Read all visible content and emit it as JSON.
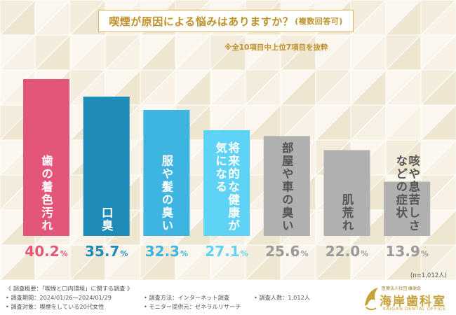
{
  "header": {
    "title": "喫煙が原因による悩みはありますか？",
    "title_sub": "(複数回答可)",
    "note": "※全10項目中上位7項目を抜粋"
  },
  "chart_data": {
    "type": "bar",
    "title": "喫煙が原因による悩みはありますか？(複数回答可)",
    "categories": [
      "歯の着色汚れ",
      "口臭",
      "服や髪の臭い",
      "将来的な健康が気になる",
      "部屋や車の臭い",
      "肌荒れ",
      "咳や息苦しさなどの症状"
    ],
    "values": [
      40.2,
      35.7,
      32.3,
      27.1,
      25.6,
      22.0,
      13.9
    ],
    "value_labels": [
      {
        "num": "40.2",
        "unit": "%"
      },
      {
        "num": "35.7",
        "unit": "%"
      },
      {
        "num": "32.3",
        "unit": "%"
      },
      {
        "num": "27.1",
        "unit": "%"
      },
      {
        "num": "25.6",
        "unit": "%"
      },
      {
        "num": "22.0",
        "unit": "%"
      },
      {
        "num": "13.9",
        "unit": "%"
      }
    ],
    "bar_label_lines": [
      [
        "歯の着色汚れ"
      ],
      [
        "口臭"
      ],
      [
        "服や髪の臭い"
      ],
      [
        "将来的な健康が",
        "気になる"
      ],
      [
        "部屋や車の臭い"
      ],
      [
        "肌荒れ"
      ],
      [
        "咳や息苦しさ",
        "などの症状"
      ]
    ],
    "colors": [
      "#e4557a",
      "#1e8cb8",
      "#3eb4e0",
      "#5fd3f5",
      "#b0b0b0",
      "#b0b0b0",
      "#b0b0b0"
    ],
    "label_colors": [
      "#e4557a",
      "#1e8cb8",
      "#3eb4e0",
      "#5fd3f5",
      "#9a9a9a",
      "#9a9a9a",
      "#9a9a9a"
    ],
    "bar_text_colors": [
      "#ffffff",
      "#ffffff",
      "#ffffff",
      "#ffffff",
      "#555555",
      "#555555",
      "#555555"
    ],
    "unit": "%",
    "ylim": [
      0,
      40.2
    ],
    "xlabel": "",
    "ylabel": ""
  },
  "footer": {
    "sample_note": "(n=1,012人)",
    "overview": "《 調査概要：「喫煙と口内環境」に関する調査 》",
    "period": "• 調査期間：2024/01/26～2024/01/29",
    "target": "• 調査対象：喫煙をしている20代女性",
    "method": "• 調査方法：インターネット調査",
    "provider": "• モニター提供元：ゼネラルリサーチ",
    "count": "• 調査人数：1,012人"
  },
  "logo": {
    "sub": "医療法人社団 康樹会",
    "name": "海岸歯科室",
    "en": "KAIGAN DENTAL OFFICE"
  }
}
